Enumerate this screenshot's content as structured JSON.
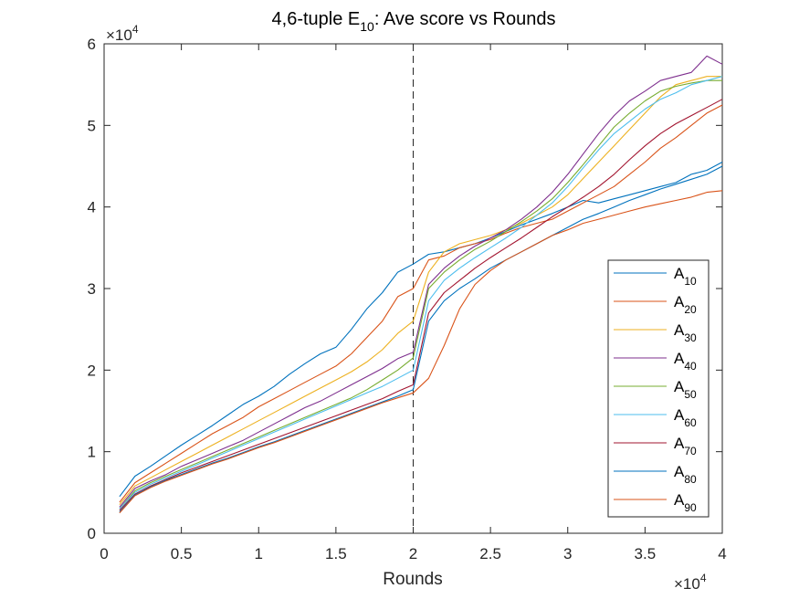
{
  "chart_data": {
    "type": "line",
    "title": {
      "prefix": "4,6-tuple E",
      "subscript": "10",
      "suffix": ": Ave score vs Rounds"
    },
    "xlabel": "Rounds",
    "x_exponent": {
      "base": "×10",
      "power": "4"
    },
    "y_exponent": {
      "base": "×10",
      "power": "4"
    },
    "xlim": [
      0,
      4
    ],
    "ylim": [
      0,
      6
    ],
    "x_ticks": [
      "0",
      "0.5",
      "1",
      "1.5",
      "2",
      "2.5",
      "3",
      "3.5",
      "4"
    ],
    "y_ticks": [
      "0",
      "1",
      "2",
      "3",
      "4",
      "5",
      "6"
    ],
    "vertical_line_x": 2,
    "grid": false,
    "legend_position": "east",
    "x": [
      0.1,
      0.2,
      0.3,
      0.4,
      0.5,
      0.6,
      0.7,
      0.8,
      0.9,
      1.0,
      1.1,
      1.2,
      1.3,
      1.4,
      1.5,
      1.6,
      1.7,
      1.8,
      1.9,
      2.0,
      2.1,
      2.2,
      2.3,
      2.4,
      2.5,
      2.6,
      2.7,
      2.8,
      2.9,
      3.0,
      3.1,
      3.2,
      3.3,
      3.4,
      3.5,
      3.6,
      3.7,
      3.8,
      3.9,
      4.0
    ],
    "series": [
      {
        "name": "A",
        "subscript": "10",
        "color": "#0072BD",
        "values": [
          0.45,
          0.7,
          0.82,
          0.95,
          1.08,
          1.2,
          1.32,
          1.45,
          1.58,
          1.68,
          1.8,
          1.95,
          2.08,
          2.2,
          2.28,
          2.5,
          2.75,
          2.95,
          3.2,
          3.3,
          3.42,
          3.45,
          3.5,
          3.55,
          3.62,
          3.7,
          3.78,
          3.85,
          3.92,
          4.0,
          4.08,
          4.05,
          4.1,
          4.15,
          4.2,
          4.25,
          4.3,
          4.4,
          4.45,
          4.55
        ]
      },
      {
        "name": "A",
        "subscript": "20",
        "color": "#D95319",
        "values": [
          0.38,
          0.62,
          0.74,
          0.86,
          0.98,
          1.1,
          1.22,
          1.32,
          1.42,
          1.55,
          1.65,
          1.75,
          1.85,
          1.95,
          2.05,
          2.2,
          2.4,
          2.6,
          2.9,
          3.0,
          3.35,
          3.4,
          3.5,
          3.55,
          3.6,
          3.68,
          3.75,
          3.8,
          3.85,
          3.95,
          4.05,
          4.15,
          4.25,
          4.4,
          4.55,
          4.72,
          4.85,
          5.0,
          5.15,
          5.25
        ]
      },
      {
        "name": "A",
        "subscript": "30",
        "color": "#EDB120",
        "values": [
          0.35,
          0.58,
          0.68,
          0.78,
          0.88,
          0.98,
          1.08,
          1.18,
          1.28,
          1.38,
          1.48,
          1.58,
          1.68,
          1.78,
          1.88,
          1.98,
          2.1,
          2.25,
          2.45,
          2.6,
          3.2,
          3.45,
          3.55,
          3.6,
          3.65,
          3.72,
          3.8,
          3.9,
          4.0,
          4.15,
          4.35,
          4.55,
          4.75,
          4.95,
          5.15,
          5.35,
          5.5,
          5.55,
          5.6,
          5.6
        ]
      },
      {
        "name": "A",
        "subscript": "40",
        "color": "#7E2F8E",
        "values": [
          0.32,
          0.55,
          0.64,
          0.72,
          0.82,
          0.9,
          0.98,
          1.06,
          1.14,
          1.24,
          1.34,
          1.44,
          1.54,
          1.62,
          1.72,
          1.82,
          1.92,
          2.02,
          2.14,
          2.22,
          3.05,
          3.25,
          3.4,
          3.52,
          3.62,
          3.72,
          3.85,
          4.0,
          4.18,
          4.4,
          4.65,
          4.9,
          5.12,
          5.3,
          5.42,
          5.55,
          5.6,
          5.65,
          5.85,
          5.75
        ]
      },
      {
        "name": "A",
        "subscript": "50",
        "color": "#77AC30",
        "values": [
          0.3,
          0.52,
          0.62,
          0.7,
          0.78,
          0.86,
          0.94,
          1.02,
          1.1,
          1.18,
          1.26,
          1.34,
          1.42,
          1.5,
          1.58,
          1.66,
          1.76,
          1.88,
          2.0,
          2.15,
          3.0,
          3.2,
          3.35,
          3.48,
          3.58,
          3.7,
          3.82,
          3.95,
          4.1,
          4.3,
          4.52,
          4.75,
          4.98,
          5.15,
          5.3,
          5.42,
          5.48,
          5.52,
          5.55,
          5.55
        ]
      },
      {
        "name": "A",
        "subscript": "60",
        "color": "#4DBEEE",
        "values": [
          0.3,
          0.5,
          0.6,
          0.68,
          0.76,
          0.84,
          0.92,
          1.0,
          1.08,
          1.16,
          1.24,
          1.32,
          1.4,
          1.48,
          1.56,
          1.64,
          1.72,
          1.8,
          1.9,
          2.0,
          2.85,
          3.1,
          3.25,
          3.38,
          3.5,
          3.62,
          3.75,
          3.9,
          4.05,
          4.25,
          4.48,
          4.7,
          4.9,
          5.05,
          5.2,
          5.32,
          5.4,
          5.5,
          5.55,
          5.6
        ]
      },
      {
        "name": "A",
        "subscript": "70",
        "color": "#A2142F",
        "values": [
          0.28,
          0.48,
          0.58,
          0.66,
          0.74,
          0.81,
          0.88,
          0.95,
          1.02,
          1.09,
          1.16,
          1.23,
          1.3,
          1.37,
          1.44,
          1.51,
          1.58,
          1.65,
          1.74,
          1.82,
          2.7,
          2.95,
          3.1,
          3.25,
          3.38,
          3.5,
          3.62,
          3.75,
          3.88,
          4.0,
          4.12,
          4.25,
          4.4,
          4.58,
          4.75,
          4.9,
          5.02,
          5.12,
          5.22,
          5.32
        ]
      },
      {
        "name": "A",
        "subscript": "80",
        "color": "#0072BD",
        "values": [
          0.26,
          0.47,
          0.57,
          0.65,
          0.72,
          0.79,
          0.86,
          0.92,
          0.99,
          1.06,
          1.12,
          1.19,
          1.26,
          1.33,
          1.4,
          1.47,
          1.54,
          1.61,
          1.68,
          1.76,
          2.6,
          2.85,
          3.0,
          3.12,
          3.25,
          3.35,
          3.45,
          3.55,
          3.65,
          3.75,
          3.85,
          3.92,
          4.0,
          4.08,
          4.15,
          4.22,
          4.28,
          4.34,
          4.4,
          4.5
        ]
      },
      {
        "name": "A",
        "subscript": "90",
        "color": "#D95319",
        "values": [
          0.25,
          0.46,
          0.56,
          0.64,
          0.71,
          0.78,
          0.85,
          0.91,
          0.98,
          1.05,
          1.11,
          1.18,
          1.25,
          1.32,
          1.39,
          1.46,
          1.53,
          1.6,
          1.66,
          1.72,
          1.9,
          2.3,
          2.75,
          3.05,
          3.22,
          3.35,
          3.45,
          3.55,
          3.65,
          3.72,
          3.8,
          3.85,
          3.9,
          3.95,
          4.0,
          4.04,
          4.08,
          4.12,
          4.18,
          4.2
        ]
      }
    ]
  }
}
